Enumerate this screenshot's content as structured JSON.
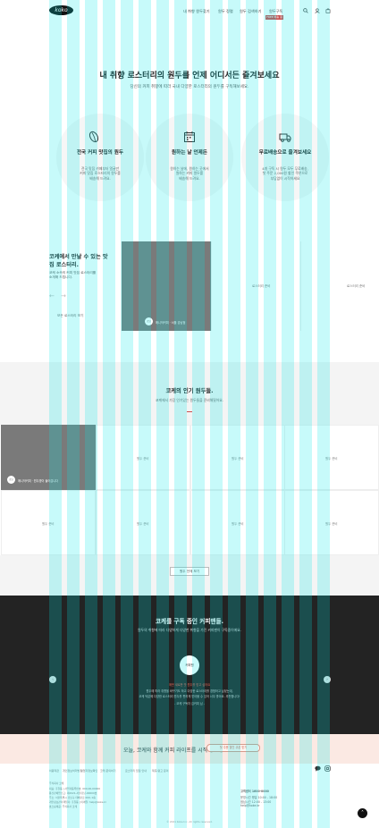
{
  "header": {
    "logo": "koko",
    "nav": [
      "내 취향 원두찾기",
      "원두 정렬",
      "원두 검색하기",
      "원두구독"
    ],
    "subscribe_badge": "FREE 배송 원두",
    "icons": [
      "search-icon",
      "user-icon",
      "cart-icon"
    ]
  },
  "hero": {
    "title": "내 취향 로스터리의 원두를 언제 어디서든 즐겨보세요",
    "subtitle": "당신의 커피 취향에 따라 국내 다양한 로스터리의 원두를 구독해보세요.",
    "features": [
      {
        "icon": "coffee-bean-icon",
        "title": "전국 커피 맛집의 원두",
        "desc": [
          "전국 맛집 카페부터 얼굴만",
          "커피 맛집 로스터리의 원두를",
          "배송해 드려요."
        ]
      },
      {
        "icon": "calendar-icon",
        "title": "원하는 날 언제든",
        "desc": [
          "원하는 날에, 원하는 곳에서",
          "원하는 커피 원두를",
          "배송해 드려요."
        ]
      },
      {
        "icon": "truck-icon",
        "title": "무료배송으로 즐겨보세요",
        "desc": [
          "4개 구독 시 원두 모두 무료배송,",
          "첫 주문 2,000원 할인 쿠폰으로",
          "부담없이 시작하세요"
        ]
      }
    ]
  },
  "meet": {
    "title": "코케에서 만날 수 있는 맛집 로스터리.",
    "desc": [
      "코케 소속의 커피 맛집 로스터리를",
      "소개해 드립니다."
    ],
    "link": "모든 로스터리 보기",
    "cards": [
      {
        "badge": "로고",
        "label": "매니악커피 · 서울 강남점"
      },
      {
        "caption": "로스터리 준비"
      },
      {
        "caption": "로스터리 준비"
      }
    ]
  },
  "popular": {
    "title": "코케의 인기 원두들.",
    "subtitle": "코케에서 가장 인기있는 원두들을 준비해뒀어요.",
    "first_badge": "로고",
    "first_label": "매니악커피 · 원두명이 들어갑니다",
    "caption": "원두 준비",
    "more": "원두 전체 보기"
  },
  "subscribe": {
    "title": "코케를 구독 중인 커피맨들.",
    "desc": "원두의 취향에 따라 다양하게 다양한 취향을 가진 커피맨이 구독중이에요.",
    "circle": "커피맨",
    "note_red": "매번 새로운 맛 원두를 받고 싶어요",
    "notes": [
      "원두에 따라 취향을 바꾸기도 하고 다양한 로스터리를 경험하고 싶었는데,",
      "코케 덕분에 다양한 로스터리 원두를 편하게 받아볼 수 있어 너무 좋아요. 추천합니다!"
    ],
    "author": "- 코케 구독자 김커피 님 -"
  },
  "cta": {
    "text": "오늘, 코케와 함께 커피 라이프를 시작해보세요.",
    "button": "첫 주문 할인 쿠폰 받기"
  },
  "footer": {
    "links": [
      "이용약관",
      "개인정보처리방침",
      "사업자정보확인",
      "코케 문의하기",
      "로스터리 입점 안내",
      "제휴/광고 문의"
    ],
    "company": [
      "주식회사 코케",
      "대표: 홍길동 | 사업자등록번호: 000-00-00000",
      "통신판매업신고: 제2021-서울강남-00000호",
      "주소: 서울특별시 강남구 테헤란로 000, 0층",
      "개인정보관리책임자: 홍길동 | 이메일: help@koke.kr",
      "호스팅제공: 주식회사 코케"
    ],
    "cs_title": "고객센터 1600-0000",
    "cs_lines": [
      "운영시간 평일 10:00 - 18:00",
      "점심시간 12:00 - 13:00",
      "help@koke.kr"
    ],
    "copyright": "© 2021 Koke Inc. All rights reserved."
  }
}
